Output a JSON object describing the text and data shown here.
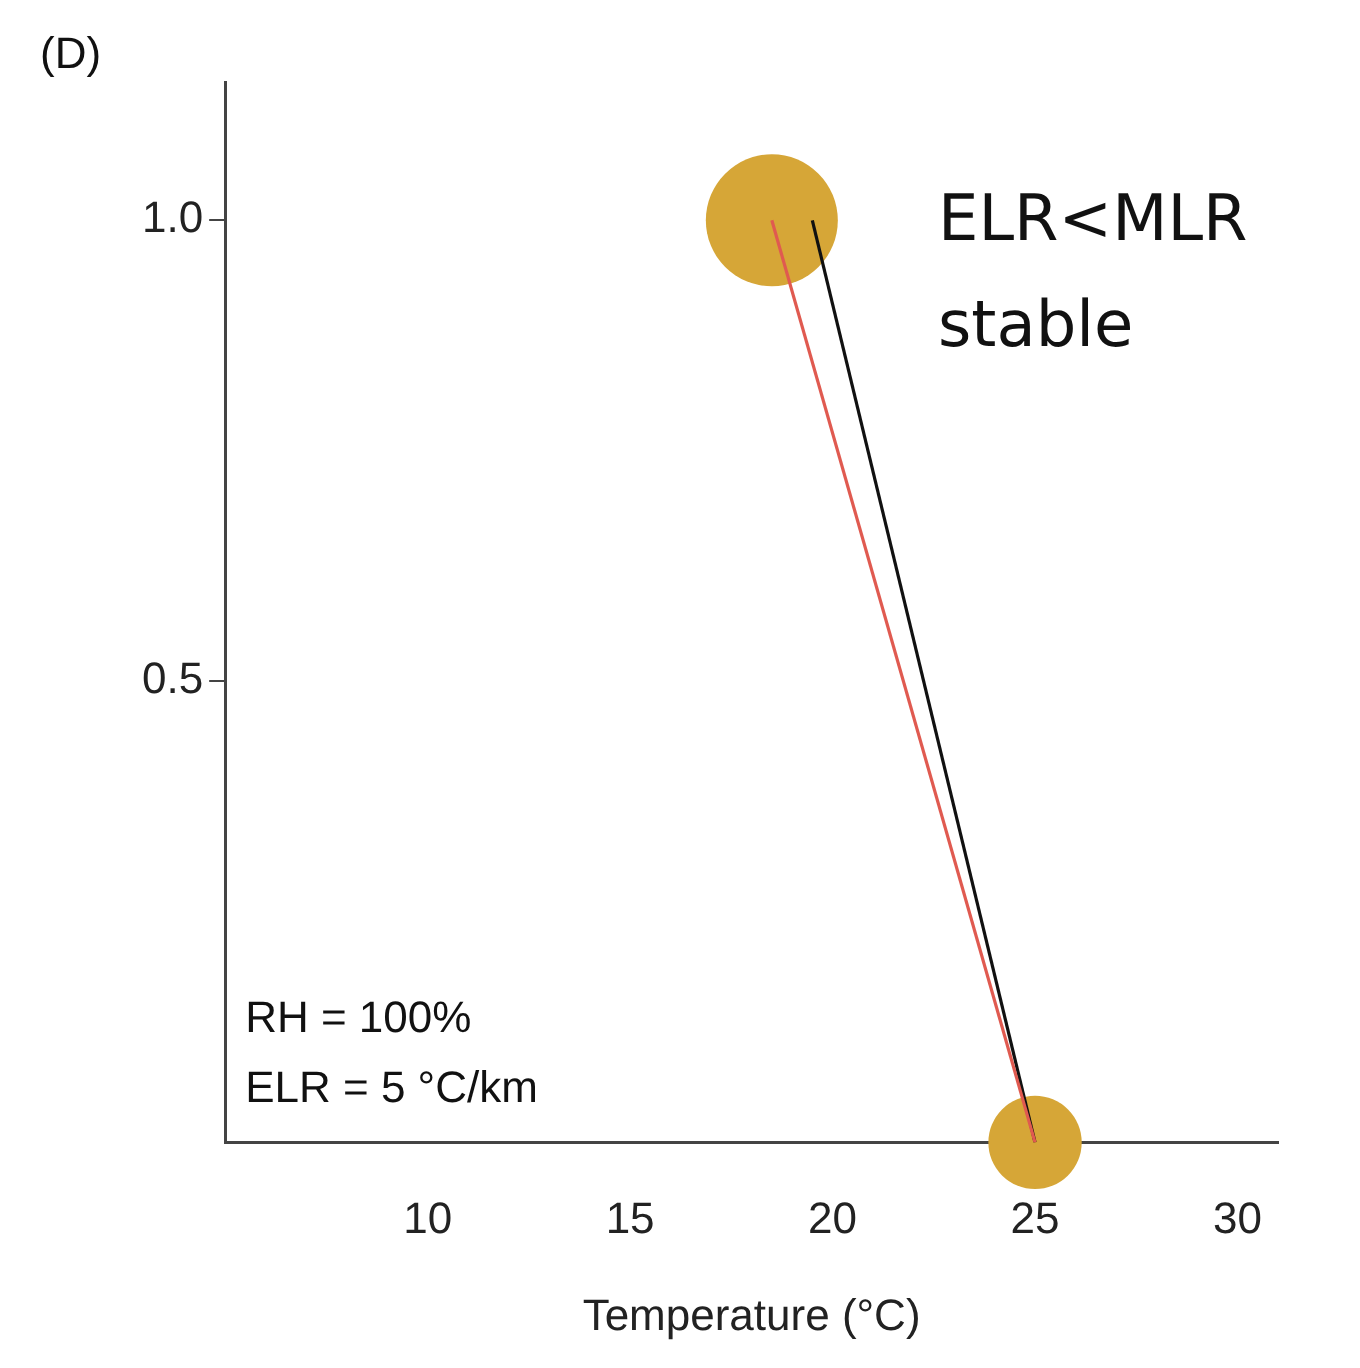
{
  "chart_data": {
    "type": "line",
    "xlabel": "Temperature (°C)",
    "annotations": [
      "(D)",
      "ELR<MLR",
      "stable",
      "RH = 100%",
      "ELR = 5 °C/km"
    ],
    "xlim": [
      5,
      31
    ],
    "xticks": [
      10,
      15,
      20,
      25,
      30
    ],
    "ylim": [
      0,
      1.15
    ],
    "yticks": [
      {
        "value": 0.5,
        "label": "0.5"
      },
      {
        "value": 1,
        "label": "1.0"
      }
    ],
    "grid": false,
    "legend": false,
    "line_style": "solid",
    "series": [
      {
        "color": "#e05a50",
        "marker": "none",
        "x": [
          25,
          18.5
        ],
        "values": [
          0,
          1
        ]
      },
      {
        "color": "#111111",
        "marker": "none",
        "x": [
          25,
          19.5
        ],
        "values": [
          0,
          1
        ]
      },
      {
        "type": "bubble",
        "color": "#d6a637",
        "x": [
          18.5,
          25
        ],
        "values": [
          1,
          0
        ],
        "sizes": [
          1,
          0.5
        ]
      }
    ]
  }
}
